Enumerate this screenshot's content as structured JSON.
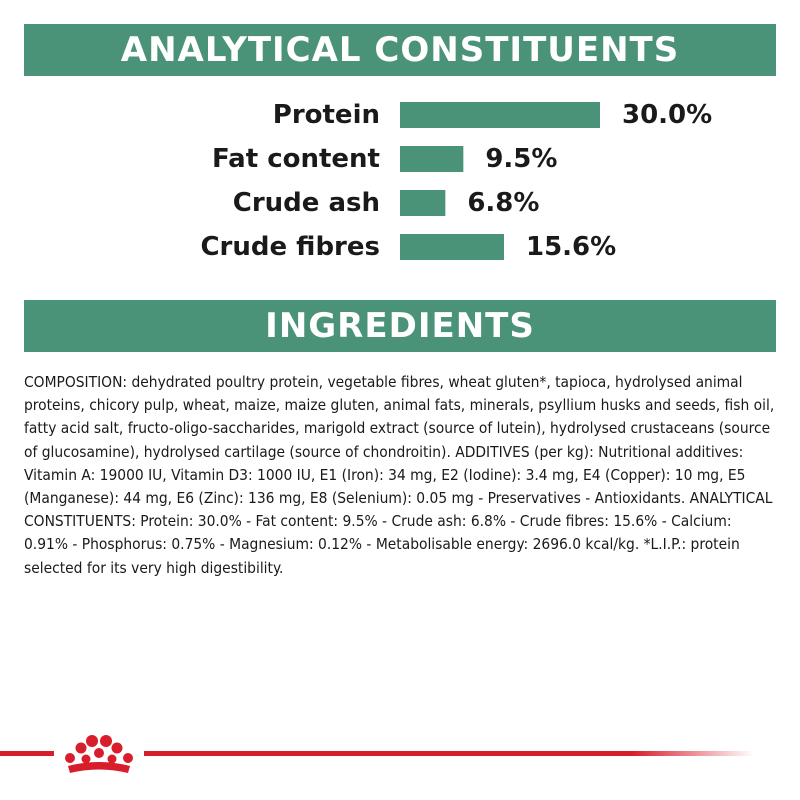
{
  "headers": {
    "analytical": "ANALYTICAL CONSTITUENTS",
    "ingredients": "INGREDIENTS"
  },
  "chart_data": {
    "type": "bar",
    "orientation": "horizontal",
    "title": "ANALYTICAL CONSTITUENTS",
    "categories": [
      "Protein",
      "Fat content",
      "Crude ash",
      "Crude fibres"
    ],
    "values": [
      30.0,
      9.5,
      6.8,
      15.6
    ],
    "value_labels": [
      "30.0%",
      "9.5%",
      "6.8%",
      "15.6%"
    ],
    "unit": "%",
    "bar_color": "#4b9378",
    "grid": false,
    "legend": "none"
  },
  "composition": "COMPOSITION: dehydrated poultry protein, vegetable fibres, wheat gluten*, tapioca, hydrolysed animal proteins, chicory pulp, wheat, maize, maize gluten, animal fats, minerals, psyllium husks and seeds, fish oil, fatty acid salt, fructo-oligo-saccharides, marigold extract (source of lutein), hydrolysed crustaceans (source of glucosamine), hydrolysed cartilage (source of chondroitin). ADDITIVES (per kg): Nutritional additives: Vitamin A: 19000 IU, Vitamin D3: 1000 IU, E1 (Iron): 34 mg, E2 (Iodine): 3.4 mg, E4 (Copper): 10 mg, E5 (Manganese): 44 mg, E6 (Zinc): 136 mg, E8 (Selenium): 0.05 mg - Preservatives - Antioxidants. ANALYTICAL CONSTITUENTS: Protein: 30.0% - Fat content: 9.5% - Crude ash: 6.8% - Crude fibres: 15.6% - Calcium: 0.91% - Phosphorus: 0.75% - Magnesium: 0.12% - Metabolisable energy: 2696.0 kcal/kg. *L.I.P.: protein selected for its very high digestibility.",
  "colors": {
    "accent_green": "#4b9378",
    "brand_red": "#d81e2a"
  },
  "icons": {
    "logo": "royal-crown-icon"
  }
}
